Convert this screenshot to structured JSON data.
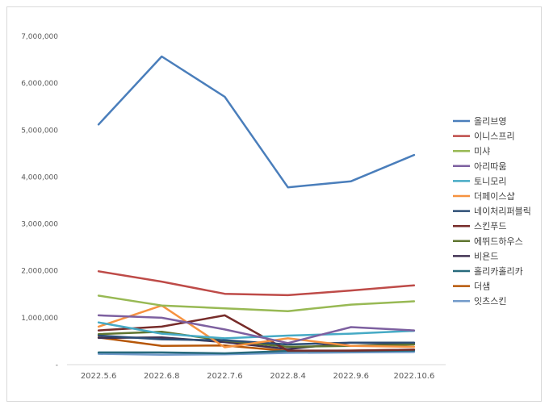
{
  "chart_data": {
    "type": "line",
    "title": "",
    "xlabel": "",
    "ylabel": "",
    "categories": [
      "2022.5.6",
      "2022.6.8",
      "2022.7.6",
      "2022.8.4",
      "2022.9.6",
      "2022.10.6"
    ],
    "ylim": [
      0,
      7000000
    ],
    "yticks": [
      {
        "value": 0,
        "label": "-"
      },
      {
        "value": 1000000,
        "label": "1,000,000"
      },
      {
        "value": 2000000,
        "label": "2,000,000"
      },
      {
        "value": 3000000,
        "label": "3,000,000"
      },
      {
        "value": 4000000,
        "label": "4,000,000"
      },
      {
        "value": 5000000,
        "label": "5,000,000"
      },
      {
        "value": 6000000,
        "label": "6,000,000"
      },
      {
        "value": 7000000,
        "label": "7,000,000"
      }
    ],
    "grid": false,
    "legend_position": "right",
    "series": [
      {
        "name": "올리브영",
        "color": "#4a7ebb",
        "values": [
          5120000,
          6570000,
          5710000,
          3780000,
          3910000,
          4470000
        ]
      },
      {
        "name": "이니스프리",
        "color": "#be4b48",
        "values": [
          1990000,
          1770000,
          1510000,
          1480000,
          1580000,
          1690000
        ]
      },
      {
        "name": "미샤",
        "color": "#98b954",
        "values": [
          1470000,
          1260000,
          1200000,
          1140000,
          1280000,
          1350000
        ]
      },
      {
        "name": "아리따움",
        "color": "#7d60a0",
        "values": [
          1050000,
          1000000,
          750000,
          460000,
          800000,
          730000
        ]
      },
      {
        "name": "토니모리",
        "color": "#46aac5",
        "values": [
          900000,
          660000,
          560000,
          620000,
          660000,
          720000
        ]
      },
      {
        "name": "더페이스샵",
        "color": "#f69240",
        "values": [
          810000,
          1260000,
          370000,
          560000,
          400000,
          380000
        ]
      },
      {
        "name": "네이처리퍼블릭",
        "color": "#2c4d75",
        "values": [
          620000,
          540000,
          520000,
          430000,
          470000,
          470000
        ]
      },
      {
        "name": "스킨푸드",
        "color": "#772c2a",
        "values": [
          730000,
          810000,
          1050000,
          300000,
          300000,
          320000
        ]
      },
      {
        "name": "에뛰드하우스",
        "color": "#5f7530",
        "values": [
          650000,
          700000,
          510000,
          380000,
          400000,
          430000
        ]
      },
      {
        "name": "비욘드",
        "color": "#403152",
        "values": [
          570000,
          580000,
          480000,
          330000,
          470000,
          440000
        ]
      },
      {
        "name": "홀리카홀리카",
        "color": "#276a7c",
        "values": [
          260000,
          260000,
          240000,
          290000,
          290000,
          300000
        ]
      },
      {
        "name": "더샘",
        "color": "#b65708",
        "values": [
          580000,
          400000,
          410000,
          290000,
          300000,
          320000
        ]
      },
      {
        "name": "잇츠스킨",
        "color": "#729aca",
        "values": [
          230000,
          210000,
          220000,
          250000,
          260000,
          270000
        ]
      }
    ]
  }
}
